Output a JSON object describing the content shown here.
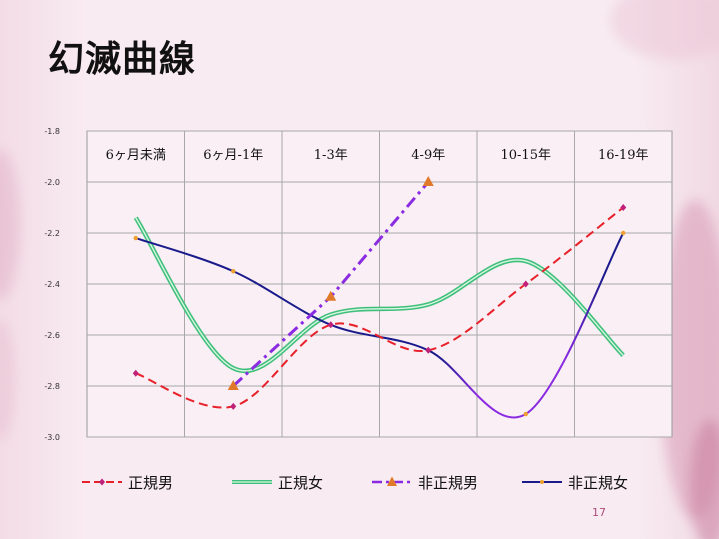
{
  "slide": {
    "title": "幻滅曲線",
    "page_number": "17"
  },
  "chart_data": {
    "type": "line",
    "categories": [
      "6ヶ月未満",
      "6ヶ月-1年",
      "1-3年",
      "4-9年",
      "10-15年",
      "16-19年"
    ],
    "ylim": [
      -3.0,
      -1.8
    ],
    "yticks": [
      "-1.8",
      "-2.0",
      "-2.2",
      "-2.4",
      "-2.6",
      "-2.8",
      "-3.0"
    ],
    "grid": true,
    "legend_position": "bottom",
    "series": [
      {
        "name": "正規男",
        "values": [
          -2.75,
          -2.88,
          -2.56,
          -2.66,
          -2.4,
          -2.1
        ],
        "color": "#e8202a",
        "style": "dashed",
        "smooth": true,
        "marker": "diamond",
        "marker_color": "#c0207a"
      },
      {
        "name": "正規女",
        "values": [
          -2.14,
          -2.73,
          -2.52,
          -2.48,
          -2.31,
          -2.68
        ],
        "color": "#3fc07a",
        "style": "double",
        "smooth": true,
        "marker": "none"
      },
      {
        "name": "非正規男",
        "values": [
          null,
          -2.8,
          -2.45,
          -2.0,
          null,
          null
        ],
        "color": "#8a2be2",
        "style": "dashdot",
        "smooth": false,
        "marker": "triangle",
        "marker_color": "#e07a2a"
      },
      {
        "name": "非正規女",
        "values": [
          -2.22,
          -2.35,
          -2.56,
          -2.66,
          -2.91,
          -2.2
        ],
        "color": "#1a1a8c",
        "color_alt": "#8a2be2",
        "style": "solid",
        "smooth": true,
        "marker": "dot",
        "marker_color": "#f0a030"
      }
    ]
  }
}
